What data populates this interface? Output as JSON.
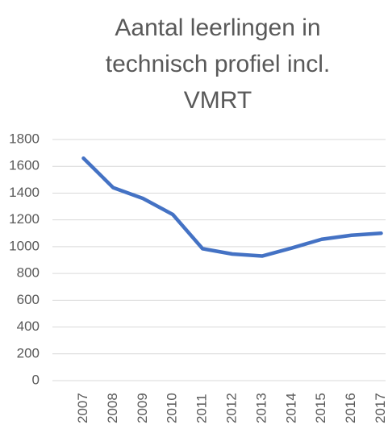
{
  "chart_data": {
    "type": "line",
    "title": "Aantal leerlingen in technisch profiel incl. VMRT",
    "categories": [
      "2007",
      "2008",
      "2009",
      "2010",
      "2011",
      "2012",
      "2013",
      "2014",
      "2015",
      "2016",
      "2017"
    ],
    "values": [
      1660,
      1440,
      1360,
      1240,
      985,
      945,
      930,
      990,
      1055,
      1085,
      1100
    ],
    "color": "#4472c4",
    "ylim": [
      0,
      1800
    ],
    "yticks": [
      0,
      200,
      400,
      600,
      800,
      1000,
      1200,
      1400,
      1600,
      1800
    ],
    "grid": true
  }
}
